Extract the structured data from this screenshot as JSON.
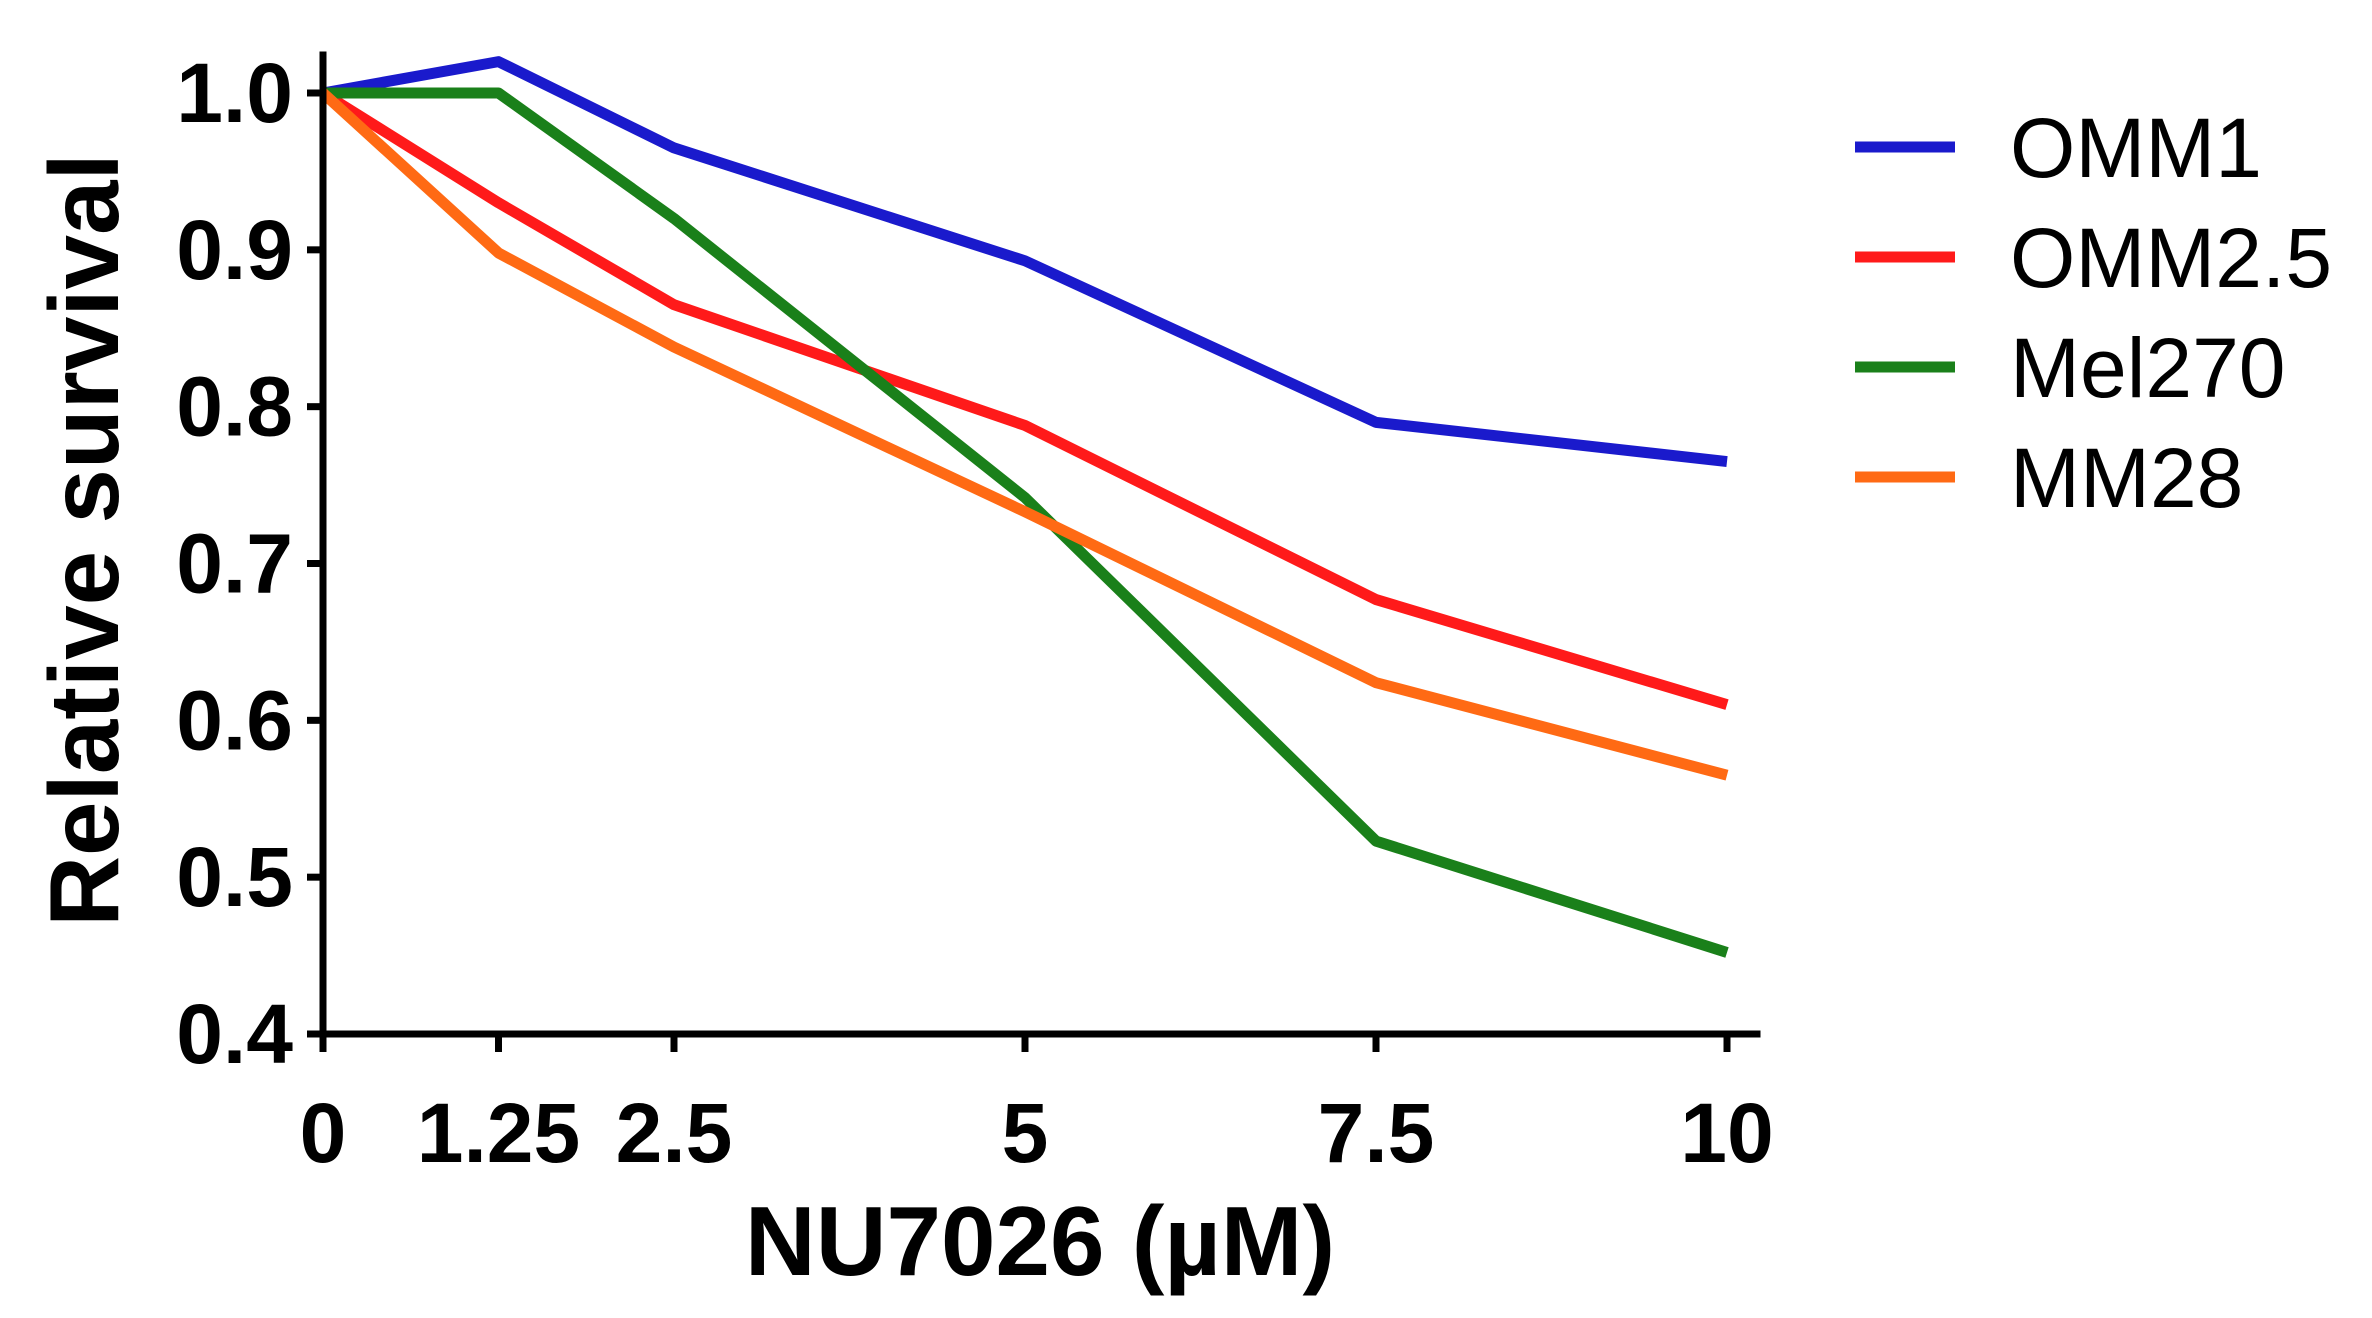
{
  "chart_data": {
    "type": "line",
    "title": "",
    "xlabel": "NU7026 (µM)",
    "ylabel": "Relative survival",
    "x": [
      0,
      1.25,
      2.5,
      5,
      7.5,
      10
    ],
    "x_tick_labels": [
      "0",
      "1.25",
      "2.5",
      "5",
      "7.5",
      "10"
    ],
    "xlim": [
      0,
      10
    ],
    "ylim": [
      0.4,
      1.0
    ],
    "y_ticks": [
      0.4,
      0.5,
      0.6,
      0.7,
      0.8,
      0.9,
      1.0
    ],
    "y_tick_labels": [
      "0.4",
      "0.5",
      "0.6",
      "0.7",
      "0.8",
      "0.9",
      "1.0"
    ],
    "grid": false,
    "legend_position": "right",
    "series": [
      {
        "name": "OMM1",
        "color": "#1a1acc",
        "values": [
          1.0,
          1.02,
          0.965,
          0.893,
          0.79,
          0.765
        ]
      },
      {
        "name": "OMM2.5",
        "color": "#ff1a1a",
        "values": [
          1.0,
          0.93,
          0.865,
          0.788,
          0.677,
          0.61
        ]
      },
      {
        "name": "Mel270",
        "color": "#1a801a",
        "values": [
          1.0,
          1.0,
          0.92,
          0.742,
          0.523,
          0.452
        ]
      },
      {
        "name": "MM28",
        "color": "#ff6a14",
        "values": [
          1.0,
          0.898,
          0.838,
          0.733,
          0.624,
          0.565
        ]
      }
    ]
  }
}
